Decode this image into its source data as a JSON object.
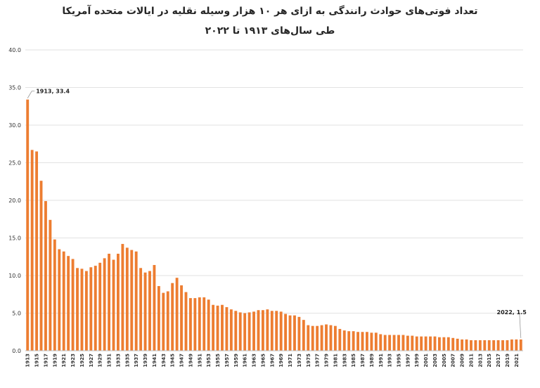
{
  "chart_data": {
    "type": "bar",
    "title": "تعداد فوتی‌های حوادث رانندگی به ازای هر ۱۰ هزار وسیله نقلیه در ایالات متحده آمریکا",
    "subtitle": "طی سال‌های ۱۹۱۳ تا ۲۰۲۲",
    "xlabel": "",
    "ylabel": "",
    "ylim": [
      0,
      40
    ],
    "yticks": [
      "0.0",
      "5.0",
      "10.0",
      "15.0",
      "20.0",
      "25.0",
      "30.0",
      "35.0",
      "40.0"
    ],
    "grid": true,
    "color": "#ED7D31",
    "categories": [
      1913,
      1914,
      1915,
      1916,
      1917,
      1918,
      1919,
      1920,
      1921,
      1922,
      1923,
      1924,
      1925,
      1926,
      1927,
      1928,
      1929,
      1930,
      1931,
      1932,
      1933,
      1934,
      1935,
      1936,
      1937,
      1938,
      1939,
      1940,
      1941,
      1942,
      1943,
      1944,
      1945,
      1946,
      1947,
      1948,
      1949,
      1950,
      1951,
      1952,
      1953,
      1954,
      1955,
      1956,
      1957,
      1958,
      1959,
      1960,
      1961,
      1962,
      1963,
      1964,
      1965,
      1966,
      1967,
      1968,
      1969,
      1970,
      1971,
      1972,
      1973,
      1974,
      1975,
      1976,
      1977,
      1978,
      1979,
      1980,
      1981,
      1982,
      1983,
      1984,
      1985,
      1986,
      1987,
      1988,
      1989,
      1990,
      1991,
      1992,
      1993,
      1994,
      1995,
      1996,
      1997,
      1998,
      1999,
      2000,
      2001,
      2002,
      2003,
      2004,
      2005,
      2006,
      2007,
      2008,
      2009,
      2010,
      2011,
      2012,
      2013,
      2014,
      2015,
      2016,
      2017,
      2018,
      2019,
      2020,
      2021,
      2022
    ],
    "xtick_labels": [
      "1913",
      "1915",
      "1917",
      "1919",
      "1921",
      "1923",
      "1925",
      "1927",
      "1929",
      "1931",
      "1933",
      "1935",
      "1937",
      "1939",
      "1941",
      "1943",
      "1945",
      "1947",
      "1949",
      "1951",
      "1953",
      "1955",
      "1957",
      "1959",
      "1961",
      "1963",
      "1965",
      "1967",
      "1969",
      "1971",
      "1973",
      "1975",
      "1977",
      "1979",
      "1981",
      "1983",
      "1985",
      "1987",
      "1989",
      "1991",
      "1993",
      "1995",
      "1997",
      "1999",
      "2001",
      "2003",
      "2005",
      "2007",
      "2009",
      "2011",
      "2013",
      "2015",
      "2017",
      "2019",
      "2021"
    ],
    "values": [
      33.4,
      26.7,
      26.5,
      22.6,
      19.9,
      17.4,
      14.8,
      13.5,
      13.2,
      12.6,
      12.2,
      11.0,
      10.9,
      10.6,
      11.1,
      11.3,
      11.7,
      12.3,
      12.9,
      12.1,
      12.9,
      14.2,
      13.7,
      13.4,
      13.2,
      11.0,
      10.4,
      10.6,
      11.4,
      8.6,
      7.7,
      7.9,
      9.0,
      9.7,
      8.7,
      7.8,
      7.0,
      7.0,
      7.1,
      7.1,
      6.8,
      6.1,
      6.0,
      6.1,
      5.8,
      5.5,
      5.3,
      5.1,
      5.0,
      5.1,
      5.2,
      5.4,
      5.4,
      5.5,
      5.3,
      5.3,
      5.2,
      4.9,
      4.7,
      4.7,
      4.5,
      4.1,
      3.4,
      3.3,
      3.3,
      3.4,
      3.5,
      3.4,
      3.3,
      2.9,
      2.7,
      2.6,
      2.6,
      2.5,
      2.5,
      2.5,
      2.4,
      2.4,
      2.2,
      2.1,
      2.1,
      2.1,
      2.1,
      2.1,
      2.0,
      2.0,
      1.9,
      1.9,
      1.9,
      1.9,
      1.9,
      1.8,
      1.8,
      1.8,
      1.7,
      1.6,
      1.5,
      1.5,
      1.4,
      1.4,
      1.4,
      1.4,
      1.4,
      1.4,
      1.4,
      1.4,
      1.4,
      1.5,
      1.5,
      1.5
    ],
    "annotations": [
      {
        "text": "1913, 33.4",
        "x": 1913,
        "y": 33.4
      },
      {
        "text": "2022, 1.5",
        "x": 2022,
        "y": 1.5
      }
    ]
  }
}
